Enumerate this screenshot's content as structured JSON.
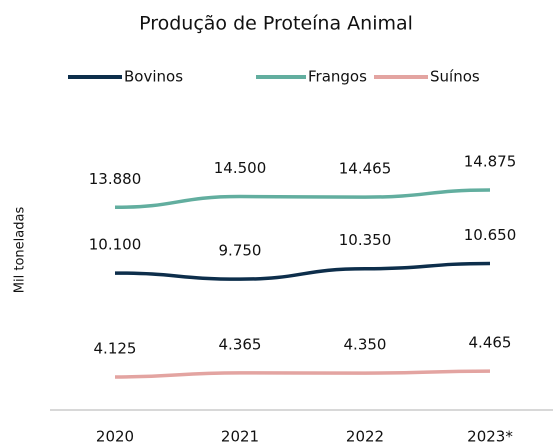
{
  "chart_data": {
    "type": "line",
    "title": "Produção de Proteína Animal",
    "y_label": "Mil toneladas",
    "categories": [
      "2020",
      "2021",
      "2022",
      "2023*"
    ],
    "series": [
      {
        "name": "Bovinos",
        "color": "#0d2e4b",
        "values": [
          10100,
          9750,
          10350,
          10650
        ],
        "value_labels": [
          "10.100",
          "9.750",
          "10.350",
          "10.650"
        ]
      },
      {
        "name": "Frangos",
        "color": "#62ae9f",
        "values": [
          13880,
          14500,
          14465,
          14875
        ],
        "value_labels": [
          "13.880",
          "14.500",
          "14.465",
          "14.875"
        ]
      },
      {
        "name": "Suínos",
        "color": "#e3a4a1",
        "values": [
          4125,
          4365,
          4350,
          4465
        ],
        "value_labels": [
          "4.125",
          "4.365",
          "4.350",
          "4.465"
        ]
      }
    ],
    "legend": "top"
  }
}
